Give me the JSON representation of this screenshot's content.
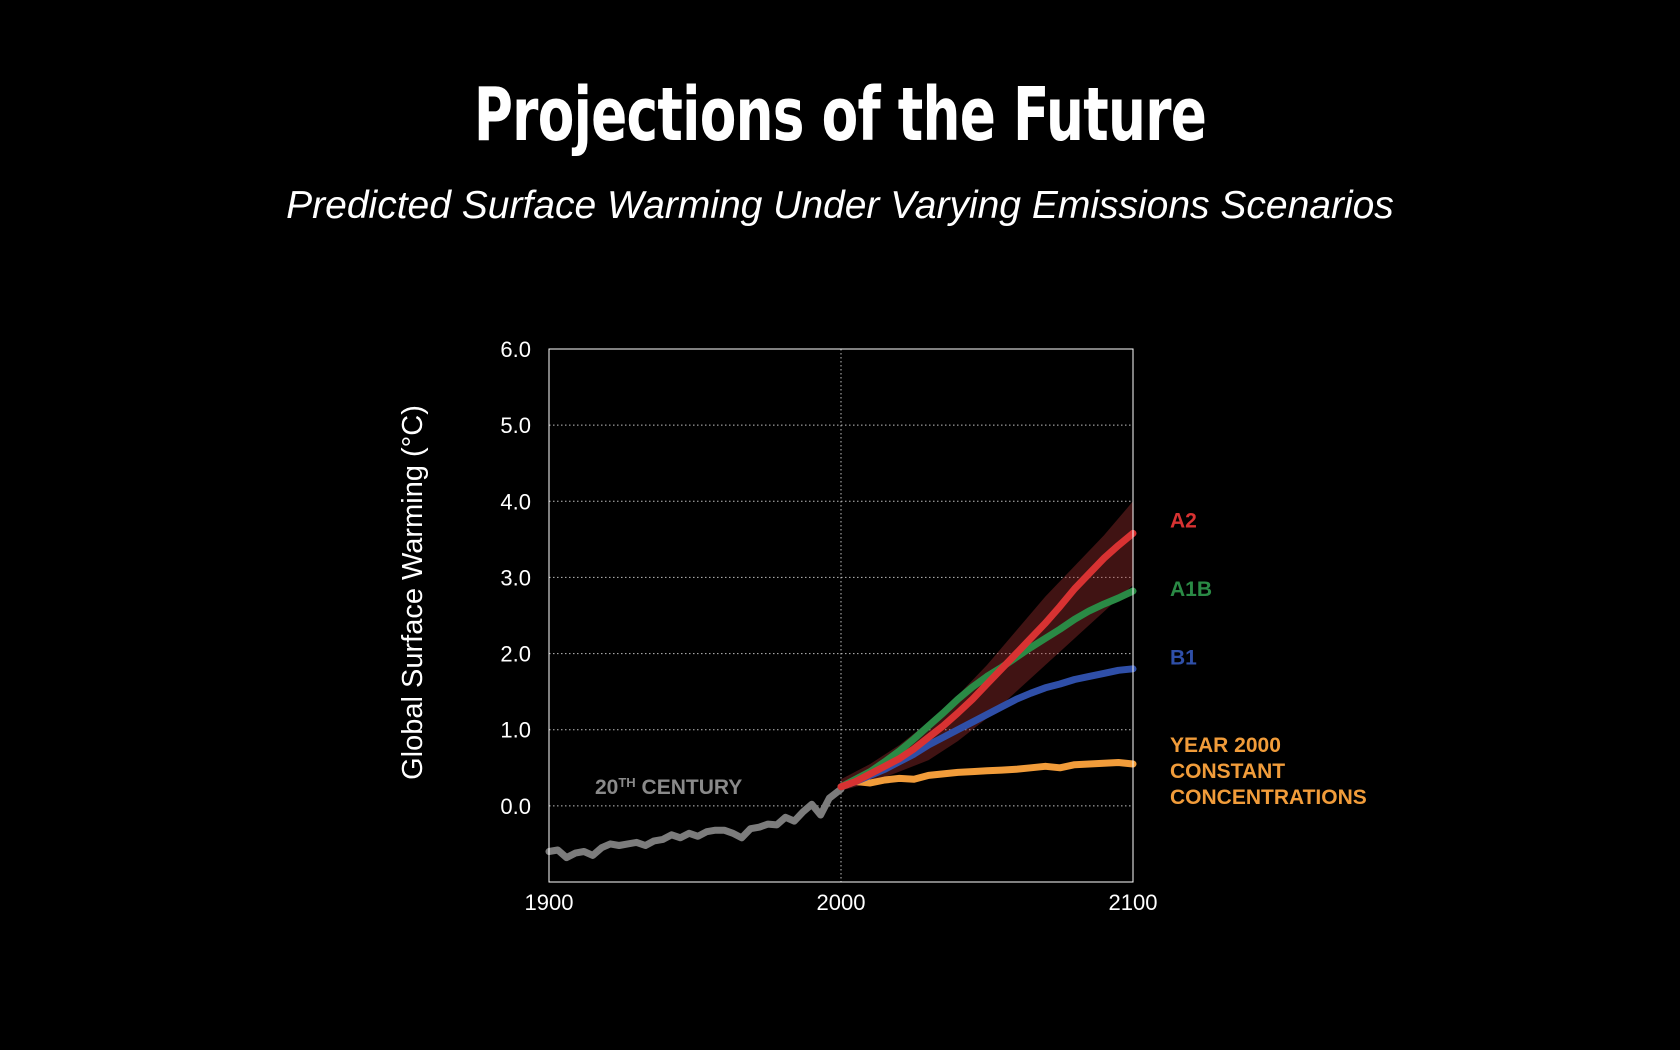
{
  "header": {
    "title": "Projections of the Future",
    "subtitle": "Predicted Surface Warming Under Varying Emissions Scenarios"
  },
  "chart_data": {
    "type": "line",
    "title": "Projections of the Future",
    "subtitle": "Predicted Surface Warming Under Varying Emissions Scenarios",
    "ylabel": "Global Surface Warming (°C)",
    "xlabel": "",
    "xlim": [
      1900,
      2100
    ],
    "ylim": [
      -1.0,
      6.0
    ],
    "x_ticks": [
      "1900",
      "2000",
      "2100"
    ],
    "y_ticks": [
      "6.0",
      "5.0",
      "4.0",
      "3.0",
      "2.0",
      "1.0",
      "0.0"
    ],
    "y_tick_values": [
      6.0,
      5.0,
      4.0,
      3.0,
      2.0,
      1.0,
      0.0
    ],
    "x_tick_values": [
      1900,
      2000,
      2100
    ],
    "grid": "horizontal dotted lines and vertical dotted line at 2000",
    "annotation": {
      "text_main": "20",
      "text_sup": "TH",
      "text_rest": " CENTURY",
      "color": "#8a8a8a"
    },
    "band": {
      "name": "A2 range",
      "color": "#a83232",
      "x": [
        2000,
        2010,
        2020,
        2030,
        2040,
        2050,
        2060,
        2070,
        2080,
        2090,
        2100
      ],
      "upper": [
        0.35,
        0.55,
        0.8,
        1.1,
        1.45,
        1.85,
        2.3,
        2.75,
        3.15,
        3.55,
        4.0
      ],
      "lower": [
        0.2,
        0.3,
        0.45,
        0.6,
        0.85,
        1.15,
        1.5,
        1.85,
        2.2,
        2.55,
        2.9
      ]
    },
    "series": [
      {
        "name": "20th century",
        "color": "#7c7c7c",
        "x": [
          1900,
          1903,
          1906,
          1909,
          1912,
          1915,
          1918,
          1921,
          1924,
          1927,
          1930,
          1933,
          1936,
          1939,
          1942,
          1945,
          1948,
          1951,
          1954,
          1957,
          1960,
          1963,
          1966,
          1969,
          1972,
          1975,
          1978,
          1981,
          1984,
          1987,
          1990,
          1993,
          1996,
          2000
        ],
        "y": [
          -0.6,
          -0.58,
          -0.68,
          -0.62,
          -0.6,
          -0.65,
          -0.55,
          -0.5,
          -0.52,
          -0.5,
          -0.48,
          -0.52,
          -0.46,
          -0.44,
          -0.38,
          -0.42,
          -0.36,
          -0.4,
          -0.34,
          -0.32,
          -0.32,
          -0.36,
          -0.42,
          -0.3,
          -0.28,
          -0.24,
          -0.25,
          -0.15,
          -0.2,
          -0.08,
          0.02,
          -0.12,
          0.1,
          0.22
        ]
      },
      {
        "name": "YEAR 2000 CONSTANT CONCENTRATIONS",
        "color": "#f19c3a",
        "x": [
          2000,
          2005,
          2010,
          2015,
          2020,
          2025,
          2030,
          2035,
          2040,
          2045,
          2050,
          2055,
          2060,
          2065,
          2070,
          2075,
          2080,
          2085,
          2090,
          2095,
          2100
        ],
        "y": [
          0.25,
          0.32,
          0.3,
          0.34,
          0.36,
          0.35,
          0.4,
          0.42,
          0.44,
          0.45,
          0.46,
          0.47,
          0.48,
          0.5,
          0.52,
          0.5,
          0.54,
          0.55,
          0.56,
          0.57,
          0.55
        ]
      },
      {
        "name": "B1",
        "color": "#2f4fa8",
        "x": [
          2000,
          2005,
          2010,
          2015,
          2020,
          2025,
          2030,
          2035,
          2040,
          2045,
          2050,
          2055,
          2060,
          2065,
          2070,
          2075,
          2080,
          2085,
          2090,
          2095,
          2100
        ],
        "y": [
          0.25,
          0.32,
          0.4,
          0.48,
          0.58,
          0.68,
          0.8,
          0.9,
          1.0,
          1.1,
          1.2,
          1.3,
          1.4,
          1.48,
          1.55,
          1.6,
          1.66,
          1.7,
          1.74,
          1.78,
          1.8
        ]
      },
      {
        "name": "A1B",
        "color": "#2a8a45",
        "x": [
          2000,
          2005,
          2010,
          2015,
          2020,
          2025,
          2030,
          2035,
          2040,
          2045,
          2050,
          2055,
          2060,
          2065,
          2070,
          2075,
          2080,
          2085,
          2090,
          2095,
          2100
        ],
        "y": [
          0.25,
          0.35,
          0.45,
          0.58,
          0.72,
          0.88,
          1.05,
          1.22,
          1.4,
          1.56,
          1.7,
          1.82,
          1.95,
          2.08,
          2.2,
          2.32,
          2.45,
          2.56,
          2.65,
          2.73,
          2.82
        ]
      },
      {
        "name": "A2",
        "color": "#d83232",
        "x": [
          2000,
          2005,
          2010,
          2015,
          2020,
          2025,
          2030,
          2035,
          2040,
          2045,
          2050,
          2055,
          2060,
          2065,
          2070,
          2075,
          2080,
          2085,
          2090,
          2095,
          2100
        ],
        "y": [
          0.25,
          0.32,
          0.42,
          0.52,
          0.62,
          0.75,
          0.9,
          1.05,
          1.22,
          1.4,
          1.6,
          1.8,
          2.0,
          2.2,
          2.4,
          2.62,
          2.85,
          3.05,
          3.25,
          3.42,
          3.58
        ]
      }
    ],
    "labels": [
      {
        "name": "A2",
        "lines": [
          "A2"
        ],
        "color": "#d83232",
        "y": 3.75
      },
      {
        "name": "A1B",
        "lines": [
          "A1B"
        ],
        "color": "#2a8a45",
        "y": 2.85
      },
      {
        "name": "B1",
        "lines": [
          "B1"
        ],
        "color": "#2f4fa8",
        "y": 1.95
      },
      {
        "name": "YEAR 2000 CONSTANT CONCENTRATIONS",
        "lines": [
          "YEAR 2000",
          "CONSTANT",
          "CONCENTRATIONS"
        ],
        "color": "#f19c3a",
        "y": 0.8
      }
    ]
  }
}
